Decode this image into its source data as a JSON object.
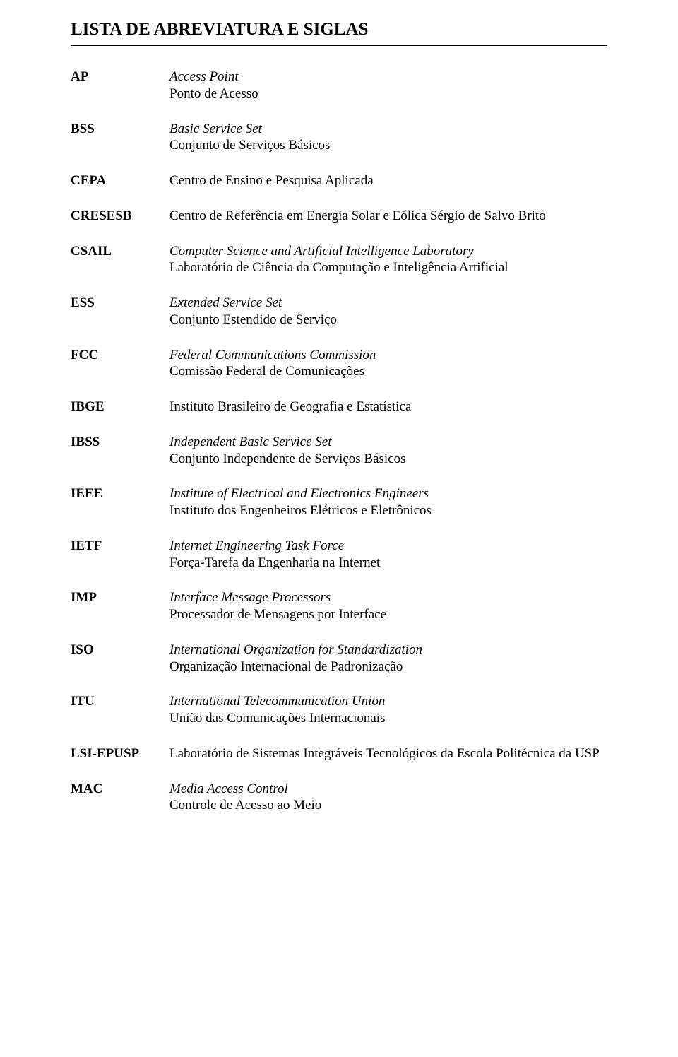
{
  "title": "LISTA DE ABREVIATURA E SIGLAS",
  "entries": {
    "ap": {
      "abbr": "AP",
      "line1": "Access Point",
      "line2": "Ponto de Acesso"
    },
    "bss": {
      "abbr": "BSS",
      "line1": "Basic Service Set",
      "line2": "Conjunto de Serviços Básicos"
    },
    "cepa": {
      "abbr": "CEPA",
      "line1": "Centro de Ensino e Pesquisa Aplicada"
    },
    "cresesb": {
      "abbr": "CRESESB",
      "line1": "Centro de Referência em Energia Solar e Eólica Sérgio de Salvo Brito"
    },
    "csail": {
      "abbr": "CSAIL",
      "line1": "Computer Science and Artificial Intelligence Laboratory",
      "line2": "Laboratório de Ciência da Computação e Inteligência Artificial"
    },
    "ess": {
      "abbr": "ESS",
      "line1": "Extended Service Set",
      "line2": "Conjunto Estendido de Serviço"
    },
    "fcc": {
      "abbr": "FCC",
      "line1": "Federal Communications Commission",
      "line2": "Comissão Federal de Comunicações"
    },
    "ibge": {
      "abbr": "IBGE",
      "line1": "Instituto Brasileiro de Geografia e Estatística"
    },
    "ibss": {
      "abbr": "IBSS",
      "line1": "Independent Basic Service Set",
      "line2": "Conjunto Independente de Serviços Básicos"
    },
    "ieee": {
      "abbr": "IEEE",
      "line1": "Institute of Electrical and Electronics Engineers",
      "line2": "Instituto dos Engenheiros Elétricos e Eletrônicos"
    },
    "ietf": {
      "abbr": "IETF",
      "line1": "Internet Engineering Task Force",
      "line2": "Força-Tarefa da Engenharia na Internet"
    },
    "imp": {
      "abbr": "IMP",
      "line1": "Interface Message Processors",
      "line2": "Processador de Mensagens por Interface"
    },
    "iso": {
      "abbr": "ISO",
      "line1": "International Organization for Standardization",
      "line2": "Organização Internacional de Padronização"
    },
    "itu": {
      "abbr": "ITU",
      "line1": "International Telecommunication Union",
      "line2": "União das Comunicações Internacionais"
    },
    "lsiepusp": {
      "abbr": "LSI-EPUSP",
      "line1": "Laboratório de Sistemas Integráveis Tecnológicos da Escola Politécnica da USP"
    },
    "mac": {
      "abbr": "MAC",
      "line1": "Media Access Control",
      "line2": "Controle de Acesso ao Meio"
    }
  },
  "italic1": {
    "ap": true,
    "bss": true,
    "cepa": false,
    "cresesb": false,
    "csail": true,
    "ess": true,
    "fcc": true,
    "ibge": false,
    "ibss": true,
    "ieee": true,
    "ietf": true,
    "imp": true,
    "iso": true,
    "itu": true,
    "lsiepusp": false,
    "mac": true
  }
}
